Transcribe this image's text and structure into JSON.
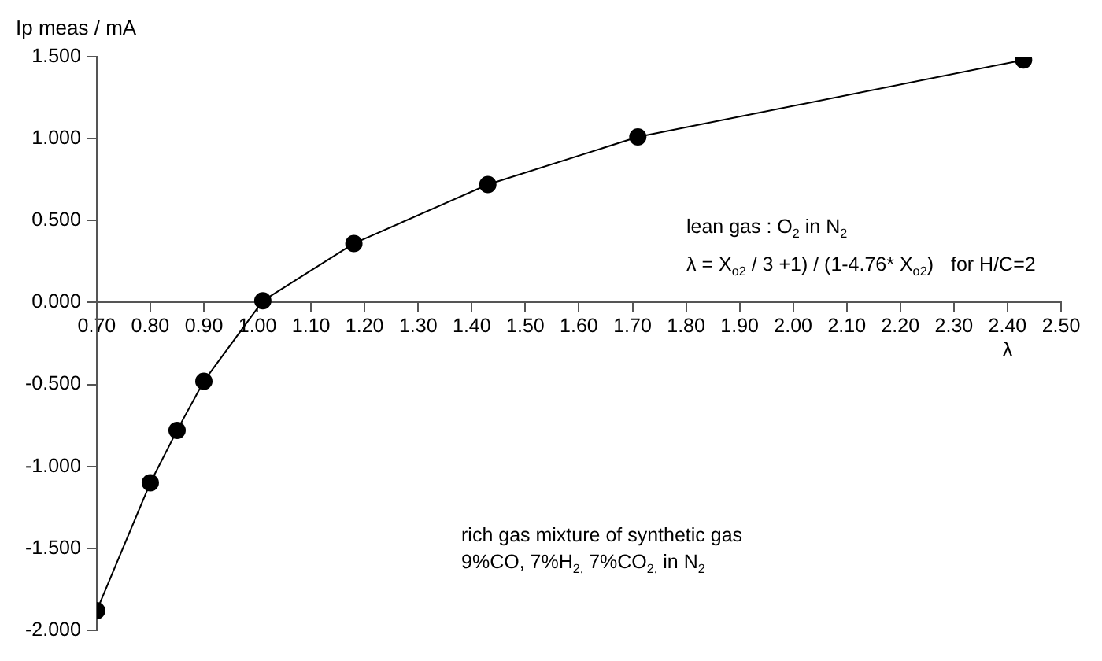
{
  "chart_data": {
    "type": "line",
    "xlabel": "λ",
    "ylabel": "Ip meas / mA",
    "x": [
      0.7,
      0.8,
      0.85,
      0.9,
      1.01,
      1.18,
      1.43,
      1.71,
      2.43
    ],
    "series": [
      {
        "color": "#000000",
        "values": [
          -1.88,
          -1.1,
          -0.78,
          -0.48,
          0.01,
          0.36,
          0.72,
          1.01,
          1.48
        ]
      }
    ],
    "xlim": [
      0.7,
      2.5
    ],
    "xticks": [
      {
        "value": 0.7,
        "label": "0.70"
      },
      {
        "value": 0.8,
        "label": "0.80"
      },
      {
        "value": 0.9,
        "label": "0.90"
      },
      {
        "value": 1.0,
        "label": "1.00"
      },
      {
        "value": 1.1,
        "label": "1.10"
      },
      {
        "value": 1.2,
        "label": "1.20"
      },
      {
        "value": 1.3,
        "label": "1.30"
      },
      {
        "value": 1.4,
        "label": "1.40"
      },
      {
        "value": 1.5,
        "label": "1.50"
      },
      {
        "value": 1.6,
        "label": "1.60"
      },
      {
        "value": 1.7,
        "label": "1.70"
      },
      {
        "value": 1.8,
        "label": "1.80"
      },
      {
        "value": 1.9,
        "label": "1.90"
      },
      {
        "value": 2.0,
        "label": "2.00"
      },
      {
        "value": 2.1,
        "label": "2.10"
      },
      {
        "value": 2.2,
        "label": "2.20"
      },
      {
        "value": 2.3,
        "label": "2.30"
      },
      {
        "value": 2.4,
        "label": "2.40"
      },
      {
        "value": 2.5,
        "label": "2.50"
      }
    ],
    "ylim": [
      -2.0,
      1.5
    ],
    "yticks": [
      {
        "value": 1.5,
        "label": "1.500"
      },
      {
        "value": 1.0,
        "label": "1.000"
      },
      {
        "value": 0.5,
        "label": "0.500"
      },
      {
        "value": 0,
        "label": "0.000"
      },
      {
        "value": -0.5,
        "label": "-0.500"
      },
      {
        "value": -1.0,
        "label": "-1.000"
      },
      {
        "value": -1.5,
        "label": "-1.500"
      },
      {
        "value": -2.0,
        "label": "-2.000"
      }
    ],
    "annotations": [
      "lean gas : O$_{2}$ in N$_{2}$",
      "λ = X$_{o2}$ / 3 +1) / (1-4.76* X$_{o2}$)",
      "for H/C=2",
      "rich gas mixture of synthetic gas",
      "9%CO, 7%H$_{2,}$ 7%CO$_{2,}$ in N$_{2}$"
    ],
    "marker": "circle",
    "line_style": "solid",
    "grid": false,
    "legend": false
  }
}
